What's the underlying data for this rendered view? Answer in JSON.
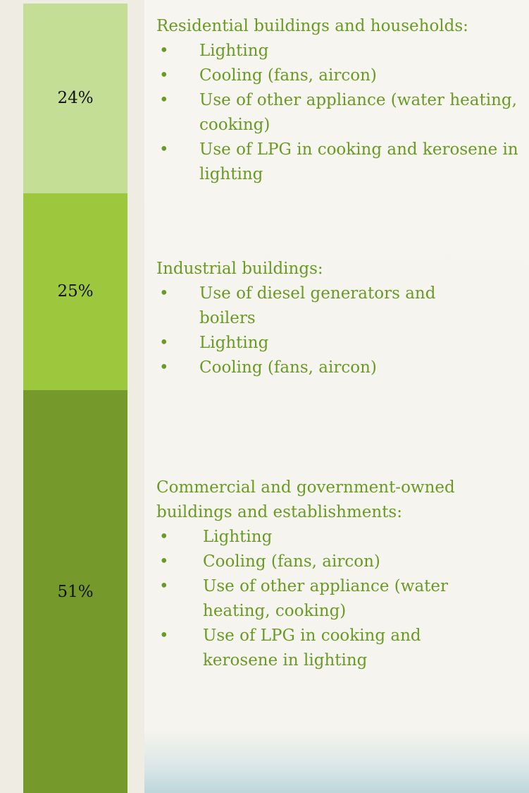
{
  "chart_data": {
    "type": "bar",
    "stacked": true,
    "ylim": [
      0,
      100
    ],
    "series": [
      {
        "name": "Residential buildings and households:",
        "color": "#c5de96",
        "values": [
          24
        ],
        "value_labels": [
          "24%"
        ],
        "items": [
          "Lighting",
          "Cooling (fans, aircon)",
          "Use of other appliance (water heating, cooking)",
          "Use of LPG in cooking and kerosene in lighting"
        ]
      },
      {
        "name": "Industrial buildings:",
        "color": "#9dc73c",
        "values": [
          25
        ],
        "value_labels": [
          "25%"
        ],
        "items": [
          "Use of diesel generators and boilers",
          "Lighting",
          "Cooling (fans, aircon)"
        ]
      },
      {
        "name": "Commercial and government-owned buildings and establishments:",
        "color": "#76992b",
        "values": [
          51
        ],
        "value_labels": [
          "51%"
        ],
        "items": [
          "Lighting",
          "Cooling (fans, aircon)",
          "Use of other appliance (water heating, cooking)",
          "Use of LPG in cooking and kerosene in lighting"
        ]
      }
    ]
  }
}
